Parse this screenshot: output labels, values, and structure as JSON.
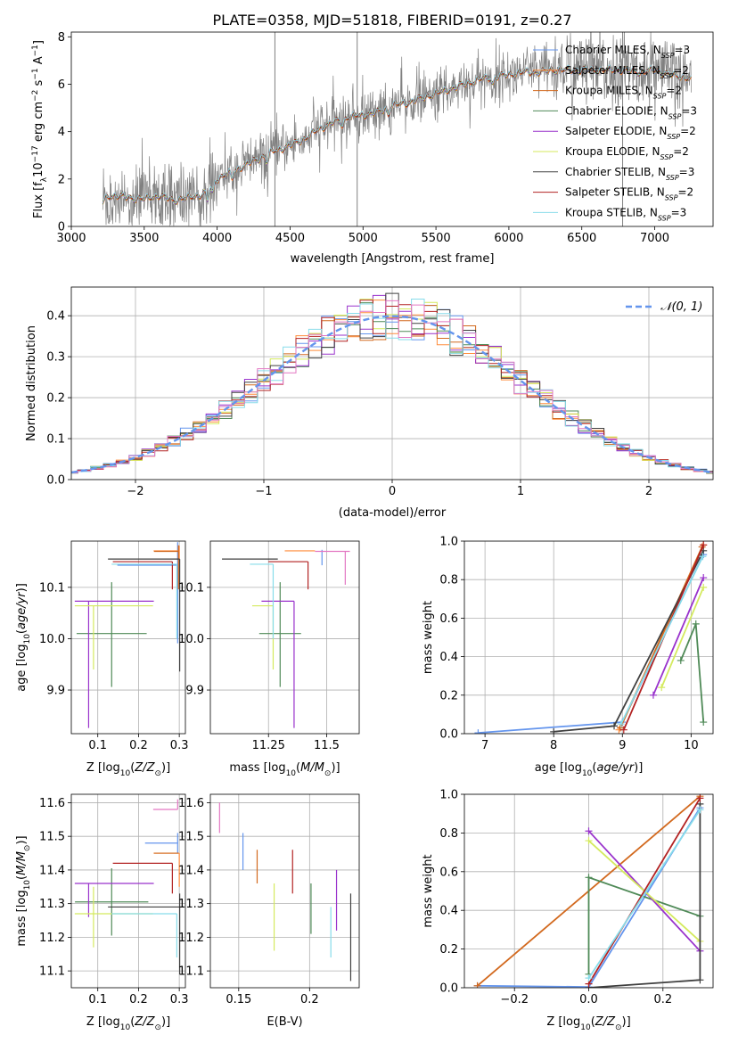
{
  "figure": {
    "title": "PLATE=0358, MJD=51818, FIBERID=0191, z=0.27"
  },
  "colors": {
    "Chabrier MILES": "#6495ed",
    "Salpeter MILES": "#ff8c3a",
    "Kroupa MILES": "#d2691e",
    "Chabrier ELODIE": "#4f8a57",
    "Salpeter ELODIE": "#9932cc",
    "Kroupa ELODIE": "#d4ea5e",
    "Chabrier STELIB": "#404040",
    "Salpeter STELIB": "#b22222",
    "Kroupa STELIB": "#87dcea",
    "Salpeter STELIB-alt": "#e377c2",
    "gaussian": "#6495ed",
    "data": "#808080"
  },
  "chart_data": [
    {
      "panel": "spectrum",
      "type": "line",
      "xlabel": "wavelength [Angstrom, rest frame]",
      "ylabel": "Flux [f$_\\lambda$10$^{-17}$ erg cm$^{-2}$ s$^{-1}$ A$^{-1}$]",
      "xlim": [
        3000,
        7400
      ],
      "ylim": [
        0,
        8.2
      ],
      "xticks": [
        3000,
        3500,
        4000,
        4500,
        5000,
        5500,
        6000,
        6500,
        7000
      ],
      "yticks": [
        0,
        2,
        4,
        6,
        8
      ],
      "legend_position": "top-right",
      "legend": [
        {
          "label": "Chabrier MILES, N",
          "sub": "SSP",
          "suffix": "=3",
          "color_key": "Chabrier MILES"
        },
        {
          "label": "Salpeter MILES, N",
          "sub": "SSP",
          "suffix": "=2",
          "color_key": "Salpeter MILES"
        },
        {
          "label": "Kroupa MILES, N",
          "sub": "SSP",
          "suffix": "=2",
          "color_key": "Kroupa MILES"
        },
        {
          "label": "Chabrier ELODIE, N",
          "sub": "SSP",
          "suffix": "=3",
          "color_key": "Chabrier ELODIE"
        },
        {
          "label": "Salpeter ELODIE, N",
          "sub": "SSP",
          "suffix": "=2",
          "color_key": "Salpeter ELODIE"
        },
        {
          "label": "Kroupa ELODIE, N",
          "sub": "SSP",
          "suffix": "=2",
          "color_key": "Kroupa ELODIE"
        },
        {
          "label": "Chabrier STELIB, N",
          "sub": "SSP",
          "suffix": "=3",
          "color_key": "Chabrier STELIB"
        },
        {
          "label": "Salpeter STELIB, N",
          "sub": "SSP",
          "suffix": "=2",
          "color_key": "Salpeter STELIB"
        },
        {
          "label": "Kroupa STELIB, N",
          "sub": "SSP",
          "suffix": "=3",
          "color_key": "Kroupa STELIB"
        }
      ],
      "continuum": {
        "x": [
          3200,
          3250,
          3300,
          3400,
          3500,
          3600,
          3700,
          3800,
          3900,
          4000,
          4100,
          4200,
          4300,
          4400,
          4500,
          4600,
          4700,
          4800,
          4900,
          5000,
          5100,
          5200,
          5300,
          5400,
          5500,
          5600,
          5700,
          5800,
          5900,
          6000,
          6100,
          6200,
          6300,
          6400,
          6500,
          6600,
          6700,
          6800,
          6900,
          7000,
          7100,
          7200,
          7250
        ],
        "y": [
          0.9,
          1.25,
          1.3,
          1.2,
          1.15,
          1.3,
          1.1,
          1.2,
          1.35,
          2.0,
          2.3,
          2.6,
          2.9,
          3.2,
          3.4,
          3.7,
          4.1,
          4.4,
          4.6,
          4.7,
          4.8,
          5.1,
          5.2,
          5.4,
          5.6,
          5.8,
          6.0,
          6.2,
          6.3,
          6.4,
          6.5,
          6.5,
          6.6,
          6.6,
          6.6,
          6.6,
          6.6,
          6.6,
          6.5,
          6.6,
          6.4,
          6.3,
          6.2
        ]
      },
      "sky_lines_x": [
        4396,
        4960,
        6780
      ]
    },
    {
      "panel": "residuals",
      "type": "line",
      "xlabel": "(data-model)/error",
      "ylabel": "Normed distribution",
      "xlim": [
        -2.5,
        2.5
      ],
      "ylim": [
        0,
        0.47
      ],
      "xticks": [
        -2,
        -1,
        0,
        1,
        2
      ],
      "yticks": [
        0.0,
        0.1,
        0.2,
        0.3,
        0.4
      ],
      "xtick_labels": [
        "−2",
        "−1",
        "0",
        "1",
        "2"
      ],
      "legend_position": "top-right",
      "gaussian_label": "𝒩(0, 1)",
      "bin_width": 0.1
    },
    {
      "panel": "Z-age",
      "type": "scatter",
      "xlabel": "Z [log$_{10}$(Z/Z$_\\odot$)]",
      "ylabel": "age  [log$_{10}$(age/yr)]",
      "xlim": [
        0.035,
        0.315
      ],
      "ylim": [
        9.815,
        10.19
      ],
      "xticks": [
        0.1,
        0.2,
        0.3
      ],
      "yticks": [
        9.9,
        10.0,
        10.1
      ],
      "points": [
        {
          "x": 0.296,
          "y": 10.143,
          "xerr": [
            0.148,
            0
          ],
          "yerr": [
            0.152,
            0.045
          ],
          "color_key": "Chabrier MILES"
        },
        {
          "x": 0.3,
          "y": 10.171,
          "xerr": [
            0.063,
            0
          ],
          "yerr": [
            0.072,
            0.01
          ],
          "color_key": "Salpeter MILES"
        },
        {
          "x": 0.298,
          "y": 10.17,
          "xerr": [
            0.06,
            0
          ],
          "yerr": [
            0.074,
            0.012
          ],
          "color_key": "Kroupa MILES"
        },
        {
          "x": 0.134,
          "y": 10.01,
          "xerr": [
            0.086,
            0.086
          ],
          "yerr": [
            0.104,
            0.1
          ],
          "color_key": "Chabrier ELODIE"
        },
        {
          "x": 0.0775,
          "y": 10.073,
          "xerr": [
            0.034,
            0.16
          ],
          "yerr": [
            0.247,
            0
          ],
          "color_key": "Salpeter ELODIE"
        },
        {
          "x": 0.0895,
          "y": 10.064,
          "xerr": [
            0.046,
            0.146
          ],
          "yerr": [
            0.124,
            0
          ],
          "color_key": "Kroupa ELODIE"
        },
        {
          "x": 0.301,
          "y": 10.155,
          "xerr": [
            0.176,
            0
          ],
          "yerr": [
            0.219,
            0
          ],
          "color_key": "Chabrier STELIB"
        },
        {
          "x": 0.283,
          "y": 10.15,
          "xerr": [
            0.146,
            0
          ],
          "yerr": [
            0.054,
            0
          ],
          "color_key": "Salpeter STELIB"
        },
        {
          "x": 0.294,
          "y": 10.145,
          "xerr": [
            0.16,
            0
          ],
          "yerr": [
            0.145,
            0
          ],
          "color_key": "Kroupa STELIB"
        }
      ]
    },
    {
      "panel": "mass-age",
      "type": "scatter",
      "xlabel": "mass [log$_{10}$(M/M$_\\odot$)]",
      "ylabel": "",
      "xlim": [
        11.0,
        11.64
      ],
      "ylim": [
        9.815,
        10.19
      ],
      "xticks": [
        11.25,
        11.5
      ],
      "yticks": [
        9.9,
        10.0,
        10.1
      ],
      "points": [
        {
          "x": 11.48,
          "y": 10.143,
          "xerr": [
            0,
            0
          ],
          "yerr": [
            0,
            0.03
          ],
          "color_key": "Chabrier MILES"
        },
        {
          "x": 11.45,
          "y": 10.171,
          "xerr": [
            0.13,
            0
          ],
          "yerr": [
            0,
            0
          ],
          "color_key": "Salpeter MILES"
        },
        {
          "x": 11.45,
          "y": 10.17,
          "xerr": [
            0,
            0
          ],
          "yerr": [
            0,
            0
          ],
          "color_key": "Kroupa MILES"
        },
        {
          "x": 11.3,
          "y": 10.01,
          "xerr": [
            0.09,
            0.09
          ],
          "yerr": [
            0.104,
            0.1
          ],
          "color_key": "Chabrier ELODIE"
        },
        {
          "x": 11.36,
          "y": 10.073,
          "xerr": [
            0.14,
            0
          ],
          "yerr": [
            0.247,
            0
          ],
          "color_key": "Salpeter ELODIE"
        },
        {
          "x": 11.27,
          "y": 10.064,
          "xerr": [
            0.09,
            0
          ],
          "yerr": [
            0.124,
            0
          ],
          "color_key": "Kroupa ELODIE"
        },
        {
          "x": 11.29,
          "y": 10.155,
          "xerr": [
            0.24,
            0
          ],
          "yerr": [
            0,
            0
          ],
          "color_key": "Chabrier STELIB"
        },
        {
          "x": 11.42,
          "y": 10.15,
          "xerr": [
            0.17,
            0
          ],
          "yerr": [
            0.054,
            0
          ],
          "color_key": "Salpeter STELIB"
        },
        {
          "x": 11.27,
          "y": 10.145,
          "xerr": [
            0.1,
            0
          ],
          "yerr": [
            0.145,
            0
          ],
          "color_key": "Kroupa STELIB"
        },
        {
          "x": 11.58,
          "y": 10.17,
          "xerr": [
            0.13,
            0.02
          ],
          "yerr": [
            0.065,
            0
          ],
          "color_key": "Salpeter STELIB-alt"
        }
      ]
    },
    {
      "panel": "age-weight",
      "type": "line",
      "xlabel": "age  [log$_{10}$(age/yr)]",
      "ylabel": "mass weight",
      "xlim": [
        6.7,
        10.32
      ],
      "ylim": [
        0,
        1.0
      ],
      "xticks": [
        7,
        8,
        9,
        10
      ],
      "yticks": [
        0.0,
        0.2,
        0.4,
        0.6,
        0.8,
        1.0
      ],
      "series": [
        {
          "color_key": "Chabrier MILES",
          "x": [
            6.9,
            9.0,
            10.18
          ],
          "y": [
            0.004,
            0.06,
            0.93
          ]
        },
        {
          "color_key": "Salpeter MILES",
          "x": [
            8.95,
            10.18
          ],
          "y": [
            0.02,
            0.98
          ]
        },
        {
          "color_key": "Kroupa MILES",
          "x": [
            8.97,
            10.16
          ],
          "y": [
            0.03,
            0.97
          ]
        },
        {
          "color_key": "Chabrier ELODIE",
          "x": [
            9.85,
            10.07,
            10.18
          ],
          "y": [
            0.38,
            0.57,
            0.06
          ]
        },
        {
          "color_key": "Salpeter ELODIE",
          "x": [
            9.45,
            10.18
          ],
          "y": [
            0.2,
            0.81
          ]
        },
        {
          "color_key": "Kroupa ELODIE",
          "x": [
            9.57,
            10.18
          ],
          "y": [
            0.24,
            0.76
          ]
        },
        {
          "color_key": "Chabrier STELIB",
          "x": [
            8.0,
            8.88,
            10.18
          ],
          "y": [
            0.01,
            0.04,
            0.95
          ]
        },
        {
          "color_key": "Salpeter STELIB",
          "x": [
            9.02,
            10.18
          ],
          "y": [
            0.02,
            0.98
          ]
        },
        {
          "color_key": "Kroupa STELIB",
          "x": [
            8.98,
            10.17
          ],
          "y": [
            0.05,
            0.92
          ]
        }
      ]
    },
    {
      "panel": "Z-mass",
      "type": "scatter",
      "xlabel": "Z [log$_{10}$(Z/Z$_\\odot$)]",
      "ylabel": "mass [log$_{10}$(M/M$_\\odot$)]",
      "xlim": [
        0.035,
        0.315
      ],
      "ylim": [
        11.05,
        11.625
      ],
      "xticks": [
        0.1,
        0.2,
        0.3
      ],
      "yticks": [
        11.1,
        11.2,
        11.3,
        11.4,
        11.5,
        11.6
      ],
      "points": [
        {
          "x": 0.296,
          "y": 11.48,
          "xerr": [
            0.08,
            0
          ],
          "yerr": [
            0.03,
            0.03
          ],
          "color_key": "Chabrier MILES"
        },
        {
          "x": 0.3,
          "y": 11.45,
          "xerr": [
            0.063,
            0
          ],
          "yerr": [
            0.1,
            0
          ],
          "color_key": "Salpeter MILES"
        },
        {
          "x": 0.298,
          "y": 11.45,
          "xerr": [
            0.06,
            0
          ],
          "yerr": [
            0,
            0
          ],
          "color_key": "Kroupa MILES"
        },
        {
          "x": 0.134,
          "y": 11.305,
          "xerr": [
            0.09,
            0.09
          ],
          "yerr": [
            0.1,
            0.1
          ],
          "color_key": "Chabrier ELODIE"
        },
        {
          "x": 0.0775,
          "y": 11.36,
          "xerr": [
            0.034,
            0.16
          ],
          "yerr": [
            0.1,
            0
          ],
          "color_key": "Salpeter ELODIE"
        },
        {
          "x": 0.0895,
          "y": 11.27,
          "xerr": [
            0.046,
            0.146
          ],
          "yerr": [
            0.1,
            0.08
          ],
          "color_key": "Kroupa ELODIE"
        },
        {
          "x": 0.301,
          "y": 11.29,
          "xerr": [
            0.176,
            0
          ],
          "yerr": [
            0.2,
            0.04
          ],
          "color_key": "Chabrier STELIB"
        },
        {
          "x": 0.283,
          "y": 11.42,
          "xerr": [
            0.146,
            0
          ],
          "yerr": [
            0.09,
            0
          ],
          "color_key": "Salpeter STELIB"
        },
        {
          "x": 0.294,
          "y": 11.27,
          "xerr": [
            0.16,
            0
          ],
          "yerr": [
            0.13,
            0
          ],
          "color_key": "Kroupa STELIB"
        },
        {
          "x": 0.296,
          "y": 11.58,
          "xerr": [
            0.06,
            0
          ],
          "yerr": [
            0,
            0.03
          ],
          "color_key": "Salpeter STELIB-alt"
        }
      ]
    },
    {
      "panel": "EBV-mass",
      "type": "scatter",
      "xlabel": "E(B-V)",
      "ylabel": "",
      "xlim": [
        0.13,
        0.235
      ],
      "ylim": [
        11.05,
        11.625
      ],
      "xticks": [
        0.15,
        0.2
      ],
      "yticks": [
        11.1,
        11.2,
        11.3,
        11.4,
        11.5,
        11.6
      ],
      "points": [
        {
          "x": 0.1365,
          "y": 11.55,
          "yerr": [
            0.04,
            0.05
          ],
          "color_key": "Salpeter STELIB-alt"
        },
        {
          "x": 0.153,
          "y": 11.45,
          "yerr": [
            0.05,
            0.06
          ],
          "color_key": "Chabrier MILES"
        },
        {
          "x": 0.163,
          "y": 11.41,
          "yerr": [
            0.05,
            0.05
          ],
          "color_key": "Kroupa MILES"
        },
        {
          "x": 0.175,
          "y": 11.28,
          "yerr": [
            0.12,
            0.08
          ],
          "color_key": "Kroupa ELODIE"
        },
        {
          "x": 0.188,
          "y": 11.39,
          "yerr": [
            0.06,
            0.07
          ],
          "color_key": "Salpeter STELIB"
        },
        {
          "x": 0.201,
          "y": 11.29,
          "yerr": [
            0.08,
            0.07
          ],
          "color_key": "Chabrier ELODIE"
        },
        {
          "x": 0.215,
          "y": 11.22,
          "yerr": [
            0.08,
            0.07
          ],
          "color_key": "Kroupa STELIB"
        },
        {
          "x": 0.219,
          "y": 11.31,
          "yerr": [
            0.09,
            0.09
          ],
          "color_key": "Salpeter ELODIE"
        },
        {
          "x": 0.229,
          "y": 11.2,
          "yerr": [
            0.13,
            0.13
          ],
          "color_key": "Chabrier STELIB"
        }
      ]
    },
    {
      "panel": "Z-weight",
      "type": "line",
      "xlabel": "Z [log$_{10}$(Z/Z$_\\odot$)]",
      "ylabel": "mass weight",
      "xlim": [
        -0.335,
        0.335
      ],
      "ylim": [
        0,
        1.0
      ],
      "xticks": [
        -0.2,
        0.0,
        0.2
      ],
      "xtick_labels": [
        "−0.2",
        "0.0",
        "0.2"
      ],
      "yticks": [
        0.0,
        0.2,
        0.4,
        0.6,
        0.8,
        1.0
      ],
      "series": [
        {
          "color_key": "Chabrier MILES",
          "x": [
            -0.3,
            0.0,
            0.3
          ],
          "y": [
            0.01,
            0.004,
            0.93
          ]
        },
        {
          "color_key": "Kroupa MILES",
          "x": [
            -0.3,
            0.3
          ],
          "y": [
            0.01,
            0.99
          ]
        },
        {
          "color_key": "Chabrier ELODIE",
          "x": [
            0.0,
            0.0,
            0.3
          ],
          "y": [
            0.07,
            0.57,
            0.37
          ]
        },
        {
          "color_key": "Salpeter ELODIE",
          "x": [
            0.0,
            0.3
          ],
          "y": [
            0.81,
            0.19
          ]
        },
        {
          "color_key": "Kroupa ELODIE",
          "x": [
            0.0,
            0.3
          ],
          "y": [
            0.76,
            0.24
          ]
        },
        {
          "color_key": "Chabrier STELIB",
          "x": [
            0.0,
            0.3,
            0.3
          ],
          "y": [
            0.0,
            0.04,
            0.95
          ]
        },
        {
          "color_key": "Salpeter STELIB",
          "x": [
            0.0,
            0.3
          ],
          "y": [
            0.02,
            0.98
          ]
        },
        {
          "color_key": "Kroupa STELIB",
          "x": [
            0.0,
            0.3
          ],
          "y": [
            0.05,
            0.92
          ]
        }
      ]
    }
  ]
}
